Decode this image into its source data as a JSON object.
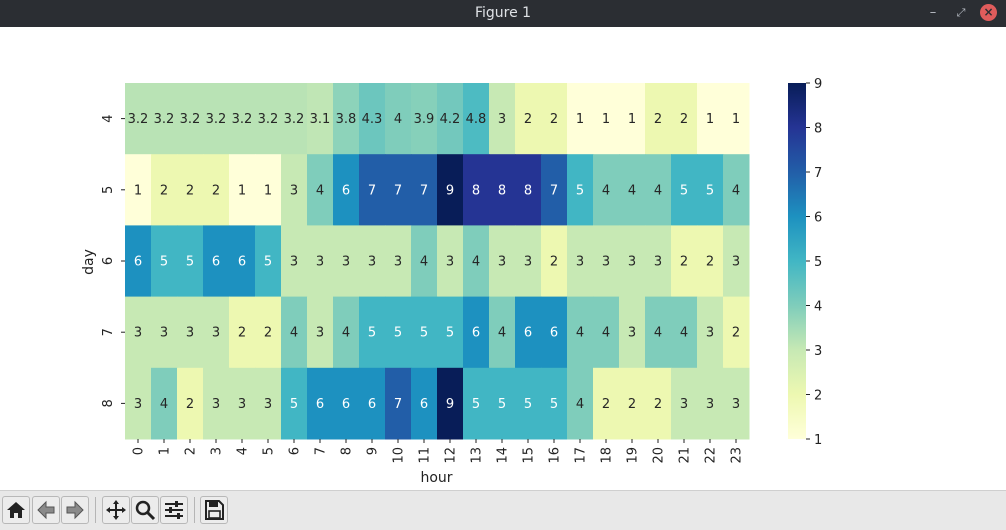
{
  "window": {
    "title": "Figure 1",
    "minimize_glyph": "–",
    "restore_glyph": "⤢",
    "close_glyph": "×"
  },
  "toolbar": {
    "buttons": [
      {
        "name": "home-button",
        "icon": "home-icon"
      },
      {
        "name": "back-button",
        "icon": "arrow-left-icon"
      },
      {
        "name": "forward-button",
        "icon": "arrow-right-icon"
      },
      {
        "name": "pan-button",
        "icon": "move-icon"
      },
      {
        "name": "zoom-button",
        "icon": "magnifier-icon"
      },
      {
        "name": "configure-subplots-button",
        "icon": "sliders-icon"
      },
      {
        "name": "save-button",
        "icon": "floppy-disk-icon"
      }
    ]
  },
  "chart_data": {
    "type": "heatmap",
    "title": "",
    "xlabel": "hour",
    "ylabel": "day",
    "x_categories": [
      "0",
      "1",
      "2",
      "3",
      "4",
      "5",
      "6",
      "7",
      "8",
      "9",
      "10",
      "11",
      "12",
      "13",
      "14",
      "15",
      "16",
      "17",
      "18",
      "19",
      "20",
      "21",
      "22",
      "23"
    ],
    "y_categories": [
      "4",
      "5",
      "6",
      "7",
      "8"
    ],
    "values": [
      [
        3.2,
        3.2,
        3.2,
        3.2,
        3.2,
        3.2,
        3.2,
        3.1,
        3.8,
        4.3,
        4,
        3.9,
        4.2,
        4.8,
        3,
        2,
        2,
        1,
        1,
        1,
        2,
        2,
        1,
        1
      ],
      [
        1,
        2,
        2,
        2,
        1,
        1,
        3,
        4,
        6,
        7,
        7,
        7,
        9,
        8,
        8,
        8,
        7,
        5,
        4,
        4,
        4,
        5,
        5,
        4
      ],
      [
        6,
        5,
        5,
        6,
        6,
        5,
        3,
        3,
        3,
        3,
        3,
        4,
        3,
        4,
        3,
        3,
        2,
        3,
        3,
        3,
        3,
        2,
        2,
        3
      ],
      [
        3,
        3,
        3,
        3,
        2,
        2,
        4,
        3,
        4,
        5,
        5,
        5,
        5,
        6,
        4,
        6,
        6,
        4,
        4,
        3,
        4,
        4,
        3,
        2
      ],
      [
        3,
        4,
        2,
        3,
        3,
        3,
        5,
        6,
        6,
        6,
        7,
        6,
        9,
        5,
        5,
        5,
        5,
        4,
        2,
        2,
        2,
        3,
        3,
        3
      ]
    ],
    "annotations": [
      [
        "3.2",
        "3.2",
        "3.2",
        "3.2",
        "3.2",
        "3.2",
        "3.2",
        "3.1",
        "3.8",
        "4.3",
        "4",
        "3.9",
        "4.2",
        "4.8",
        "3",
        "2",
        "2",
        "1",
        "1",
        "1",
        "2",
        "2",
        "1",
        "1"
      ],
      [
        "1",
        "2",
        "2",
        "2",
        "1",
        "1",
        "3",
        "4",
        "6",
        "7",
        "7",
        "7",
        "9",
        "8",
        "8",
        "8",
        "7",
        "5",
        "4",
        "4",
        "4",
        "5",
        "5",
        "4"
      ],
      [
        "6",
        "5",
        "5",
        "6",
        "6",
        "5",
        "3",
        "3",
        "3",
        "3",
        "3",
        "4",
        "3",
        "4",
        "3",
        "3",
        "2",
        "3",
        "3",
        "3",
        "3",
        "2",
        "2",
        "3"
      ],
      [
        "3",
        "3",
        "3",
        "3",
        "2",
        "2",
        "4",
        "3",
        "4",
        "5",
        "5",
        "5",
        "5",
        "6",
        "4",
        "6",
        "6",
        "4",
        "4",
        "3",
        "4",
        "4",
        "3",
        "2"
      ],
      [
        "3",
        "4",
        "2",
        "3",
        "3",
        "3",
        "5",
        "6",
        "6",
        "6",
        "7",
        "6",
        "9",
        "5",
        "5",
        "5",
        "5",
        "4",
        "2",
        "2",
        "2",
        "3",
        "3",
        "3"
      ]
    ],
    "colormap": "YlGnBu",
    "colorbar": {
      "range": [
        1,
        9
      ],
      "ticks": [
        "1",
        "2",
        "3",
        "4",
        "5",
        "6",
        "7",
        "8",
        "9"
      ]
    },
    "legend": "none"
  }
}
